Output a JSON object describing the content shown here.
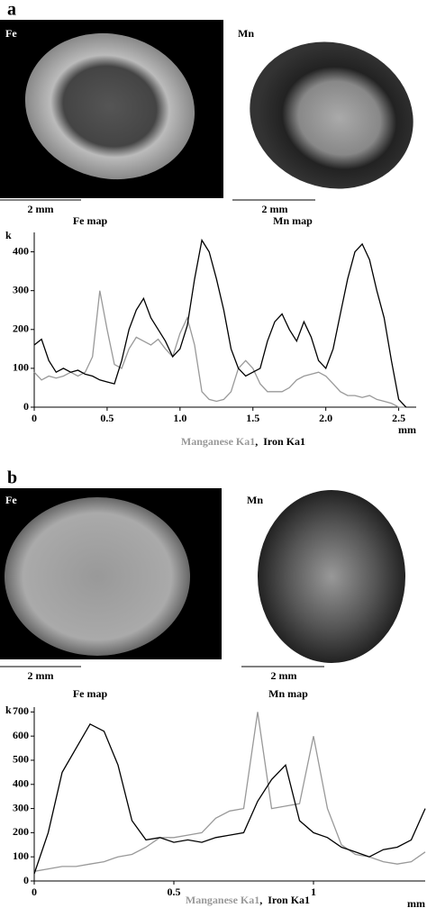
{
  "chart_data": [
    {
      "type": "line",
      "panel": "a",
      "image_labels": [
        "Fe",
        "Mn"
      ],
      "scale_labels": [
        "2 mm",
        "2 mm"
      ],
      "map_labels": [
        "Fe map",
        "Mn map"
      ],
      "y_unit": "k",
      "x_unit": "mm",
      "legend_separator": ",",
      "x": [
        0,
        0.05,
        0.1,
        0.15,
        0.2,
        0.25,
        0.3,
        0.35,
        0.4,
        0.45,
        0.5,
        0.55,
        0.6,
        0.65,
        0.7,
        0.75,
        0.8,
        0.85,
        0.9,
        0.95,
        1.0,
        1.05,
        1.1,
        1.15,
        1.2,
        1.25,
        1.3,
        1.35,
        1.4,
        1.45,
        1.5,
        1.55,
        1.6,
        1.65,
        1.7,
        1.75,
        1.8,
        1.85,
        1.9,
        1.95,
        2.0,
        2.05,
        2.1,
        2.15,
        2.2,
        2.25,
        2.3,
        2.35,
        2.4,
        2.45,
        2.5,
        2.55
      ],
      "series": [
        {
          "name": "Manganese Ka1",
          "color": "#999999",
          "values": [
            90,
            70,
            80,
            75,
            80,
            90,
            80,
            90,
            130,
            300,
            200,
            110,
            100,
            150,
            180,
            170,
            160,
            175,
            150,
            130,
            190,
            230,
            160,
            40,
            20,
            15,
            20,
            40,
            100,
            120,
            100,
            60,
            40,
            40,
            40,
            50,
            70,
            80,
            85,
            90,
            80,
            60,
            40,
            30,
            30,
            25,
            30,
            20,
            15,
            10,
            0,
            0
          ]
        },
        {
          "name": "Iron Ka1",
          "color": "#000000",
          "values": [
            160,
            175,
            120,
            90,
            100,
            90,
            95,
            85,
            80,
            70,
            65,
            60,
            120,
            200,
            250,
            280,
            230,
            200,
            170,
            130,
            150,
            210,
            330,
            430,
            400,
            330,
            250,
            150,
            100,
            80,
            90,
            100,
            170,
            220,
            240,
            200,
            170,
            220,
            180,
            120,
            100,
            150,
            240,
            330,
            400,
            420,
            380,
            300,
            230,
            120,
            20,
            0
          ]
        }
      ],
      "xlim": [
        0,
        2.62
      ],
      "xticks": [
        0,
        0.5,
        {
          "value": 1,
          "label": "1.0"
        },
        1.5,
        {
          "value": 2,
          "label": "2.0"
        },
        2.5
      ],
      "ylim": [
        0,
        450
      ],
      "yticks": [
        0,
        100,
        200,
        300,
        400
      ]
    },
    {
      "type": "line",
      "panel": "b",
      "image_labels": [
        "Fe",
        "Mn"
      ],
      "scale_labels": [
        "2 mm",
        "2 mm"
      ],
      "map_labels": [
        "Fe map",
        "Mn map"
      ],
      "y_unit": "k",
      "x_unit": "mm",
      "legend_separator": ",",
      "x": [
        0,
        0.05,
        0.1,
        0.15,
        0.2,
        0.25,
        0.3,
        0.35,
        0.4,
        0.45,
        0.5,
        0.55,
        0.6,
        0.65,
        0.7,
        0.75,
        0.8,
        0.85,
        0.9,
        0.95,
        1.0,
        1.05,
        1.1,
        1.15,
        1.2,
        1.25,
        1.3,
        1.35,
        1.4
      ],
      "series": [
        {
          "name": "Manganese Ka1",
          "color": "#999999",
          "values": [
            40,
            50,
            60,
            60,
            70,
            80,
            100,
            110,
            140,
            180,
            180,
            190,
            200,
            260,
            290,
            300,
            700,
            300,
            310,
            320,
            600,
            300,
            150,
            110,
            100,
            80,
            70,
            80,
            120
          ]
        },
        {
          "name": "Iron Ka1",
          "color": "#000000",
          "values": [
            30,
            200,
            450,
            550,
            650,
            620,
            480,
            250,
            170,
            180,
            160,
            170,
            160,
            180,
            190,
            200,
            330,
            420,
            480,
            250,
            200,
            180,
            140,
            120,
            100,
            130,
            140,
            170,
            300
          ]
        }
      ],
      "xlim": [
        0,
        1.4
      ],
      "xticks": [
        0,
        0.5,
        1
      ],
      "ylim": [
        0,
        720
      ],
      "yticks": [
        0,
        100,
        200,
        300,
        400,
        500,
        600,
        700
      ]
    }
  ]
}
